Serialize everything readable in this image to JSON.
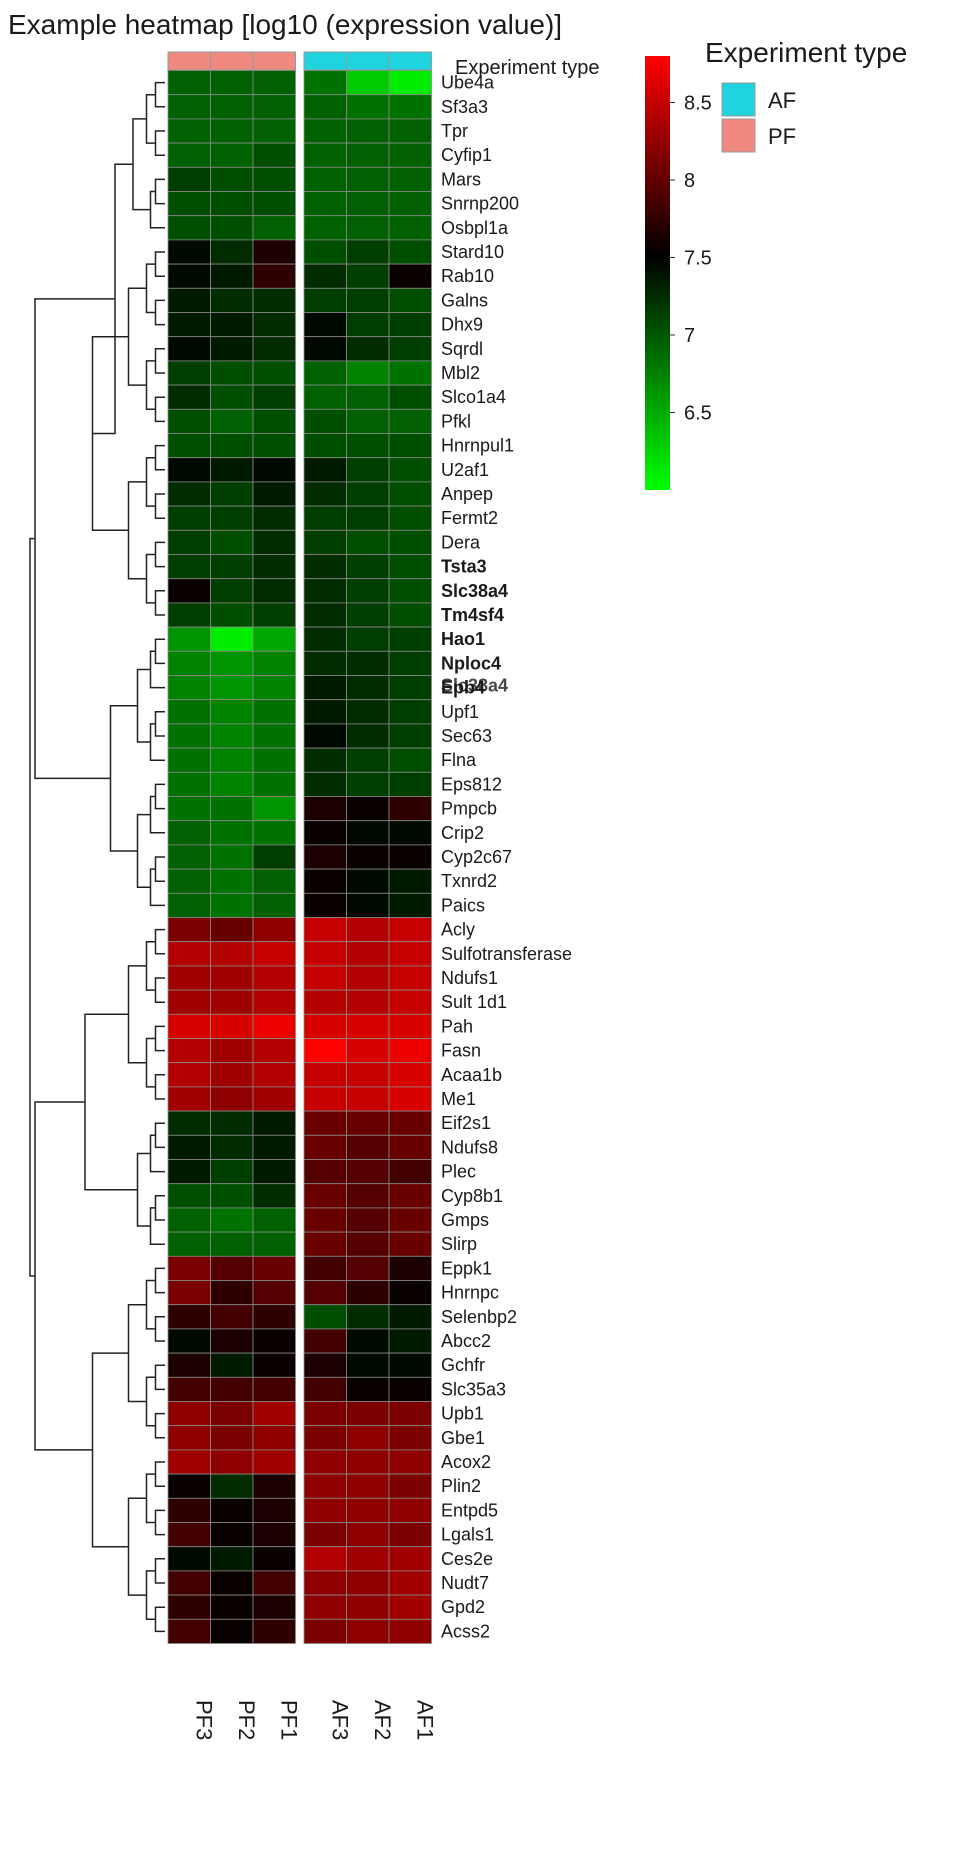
{
  "chart_data": {
    "type": "heatmap",
    "title": "Example heatmap [log10 (expression value)]",
    "annotation_label": "Experiment type",
    "legend_title": "Experiment type",
    "groups": [
      {
        "name": "AF",
        "color": "#1fd4de"
      },
      {
        "name": "PF",
        "color": "#f08a80"
      }
    ],
    "columns": [
      "PF3",
      "PF2",
      "PF1",
      "AF3",
      "AF2",
      "AF1"
    ],
    "column_groups": [
      "PF",
      "PF",
      "PF",
      "AF",
      "AF",
      "AF"
    ],
    "colorbar": {
      "min": 6.0,
      "max": 8.8,
      "ticks": [
        8.5,
        8,
        7.5,
        7,
        6.5
      ],
      "low_color": "#00ff00",
      "mid_color": "#000000",
      "high_color": "#ff0000",
      "mid_value": 7.45
    },
    "rows": [
      "Ube4a",
      "Sf3a3",
      "Tpr",
      "Cyfip1",
      "Mars",
      "Snrnp200",
      "Osbpl1a",
      "Stard10",
      "Rab10",
      "Galns",
      "Dhx9",
      "Sqrdl",
      "Mbl2",
      "Slco1a4",
      "Pfkl",
      "Hnrnpul1",
      "U2af1",
      "Anpep",
      "Fermt2",
      "Dera",
      "Tsta3",
      "Slc38a4",
      "Tm4sf4",
      "Hao1",
      "Nploc4",
      "Epb4",
      "Upf1",
      "Sec63",
      "Flna",
      "Eps812",
      "Pmpcb",
      "Crip2",
      "Cyp2c67",
      "Txnrd2",
      "Paics",
      "Acly",
      "Sulfotransferase",
      "Ndufs1",
      "Sult 1d1",
      "Pah",
      "Fasn",
      "Acaa1b",
      "Me1",
      "Eif2s1",
      "Ndufs8",
      "Plec",
      "Cyp8b1",
      "Gmps",
      "Slirp",
      "Eppk1",
      "Hnrnpc",
      "Selenbp2",
      "Abcc2",
      "Gchfr",
      "Slc35a3",
      "Upb1",
      "Gbe1",
      "Acox2",
      "Plin2",
      "Entpd5",
      "Lgals1",
      "Ces2e",
      "Nudt7",
      "Gpd2",
      "Acss2"
    ],
    "bold_rows": [
      "Tsta3",
      "Slc38a4",
      "Tm4sf4",
      "Hao1",
      "Nploc4",
      "Epb4"
    ],
    "overlap_label": {
      "row": "Epb4",
      "over": "Slc38a4",
      "text": "Slc38a4"
    },
    "values": [
      [
        6.9,
        6.9,
        6.9,
        6.8,
        6.3,
        6.1
      ],
      [
        6.9,
        6.9,
        6.9,
        6.9,
        6.8,
        6.8
      ],
      [
        6.9,
        6.9,
        6.9,
        6.9,
        6.9,
        6.9
      ],
      [
        6.9,
        6.9,
        7.0,
        6.9,
        6.9,
        6.9
      ],
      [
        7.1,
        7.0,
        7.0,
        6.9,
        6.9,
        6.9
      ],
      [
        7.0,
        7.0,
        7.0,
        6.9,
        6.9,
        6.9
      ],
      [
        7.0,
        7.0,
        6.9,
        6.9,
        6.9,
        6.9
      ],
      [
        7.4,
        7.2,
        7.6,
        7.0,
        7.1,
        7.0
      ],
      [
        7.4,
        7.3,
        7.7,
        7.2,
        7.1,
        7.5
      ],
      [
        7.3,
        7.2,
        7.2,
        7.1,
        7.1,
        7.0
      ],
      [
        7.3,
        7.3,
        7.2,
        7.4,
        7.1,
        7.1
      ],
      [
        7.4,
        7.3,
        7.2,
        7.4,
        7.2,
        7.1
      ],
      [
        7.1,
        7.0,
        7.0,
        6.9,
        6.7,
        6.8
      ],
      [
        7.2,
        7.0,
        7.1,
        6.9,
        6.9,
        7.0
      ],
      [
        7.0,
        6.9,
        7.0,
        7.0,
        6.9,
        6.9
      ],
      [
        7.0,
        7.0,
        7.0,
        7.0,
        7.0,
        7.0
      ],
      [
        7.4,
        7.3,
        7.4,
        7.3,
        7.1,
        7.0
      ],
      [
        7.2,
        7.1,
        7.3,
        7.2,
        7.1,
        7.0
      ],
      [
        7.1,
        7.1,
        7.2,
        7.1,
        7.1,
        7.0
      ],
      [
        7.1,
        7.0,
        7.2,
        7.1,
        7.0,
        7.0
      ],
      [
        7.1,
        7.1,
        7.2,
        7.2,
        7.1,
        7.0
      ],
      [
        7.5,
        7.1,
        7.2,
        7.2,
        7.1,
        7.0
      ],
      [
        7.1,
        7.0,
        7.1,
        7.2,
        7.1,
        7.0
      ],
      [
        6.6,
        6.1,
        6.5,
        7.2,
        7.1,
        7.1
      ],
      [
        6.7,
        6.6,
        6.7,
        7.2,
        7.2,
        7.1
      ],
      [
        6.7,
        6.6,
        6.7,
        7.3,
        7.2,
        7.1
      ],
      [
        6.8,
        6.7,
        6.8,
        7.3,
        7.2,
        7.1
      ],
      [
        6.8,
        6.7,
        6.8,
        7.4,
        7.2,
        7.1
      ],
      [
        6.8,
        6.7,
        6.8,
        7.2,
        7.1,
        7.0
      ],
      [
        6.8,
        6.7,
        6.8,
        7.2,
        7.1,
        7.1
      ],
      [
        6.8,
        6.8,
        6.6,
        7.6,
        7.5,
        7.7
      ],
      [
        6.9,
        6.8,
        6.8,
        7.5,
        7.4,
        7.4
      ],
      [
        6.9,
        6.8,
        7.1,
        7.6,
        7.5,
        7.5
      ],
      [
        6.9,
        6.8,
        6.9,
        7.5,
        7.4,
        7.3
      ],
      [
        6.9,
        6.8,
        6.9,
        7.5,
        7.4,
        7.3
      ],
      [
        8.1,
        8.0,
        8.2,
        8.5,
        8.4,
        8.5
      ],
      [
        8.4,
        8.4,
        8.5,
        8.5,
        8.4,
        8.5
      ],
      [
        8.3,
        8.3,
        8.4,
        8.5,
        8.4,
        8.5
      ],
      [
        8.3,
        8.3,
        8.4,
        8.4,
        8.4,
        8.5
      ],
      [
        8.6,
        8.6,
        8.7,
        8.6,
        8.6,
        8.6
      ],
      [
        8.4,
        8.3,
        8.4,
        8.8,
        8.6,
        8.7
      ],
      [
        8.4,
        8.3,
        8.4,
        8.5,
        8.5,
        8.6
      ],
      [
        8.3,
        8.2,
        8.3,
        8.5,
        8.5,
        8.6
      ],
      [
        7.2,
        7.2,
        7.3,
        8.0,
        8.0,
        8.0
      ],
      [
        7.3,
        7.2,
        7.3,
        8.0,
        7.9,
        8.0
      ],
      [
        7.3,
        7.1,
        7.3,
        7.9,
        7.9,
        7.8
      ],
      [
        7.0,
        7.0,
        7.2,
        8.0,
        7.9,
        8.0
      ],
      [
        6.9,
        6.8,
        6.9,
        8.0,
        7.9,
        8.0
      ],
      [
        6.9,
        6.9,
        6.9,
        8.0,
        7.9,
        8.0
      ],
      [
        8.1,
        7.9,
        8.0,
        7.8,
        7.9,
        7.6
      ],
      [
        8.1,
        7.7,
        7.9,
        7.9,
        7.7,
        7.5
      ],
      [
        7.7,
        7.8,
        7.7,
        7.0,
        7.2,
        7.3
      ],
      [
        7.4,
        7.6,
        7.5,
        7.8,
        7.4,
        7.3
      ],
      [
        7.6,
        7.3,
        7.5,
        7.6,
        7.4,
        7.4
      ],
      [
        7.8,
        7.8,
        7.8,
        7.8,
        7.5,
        7.5
      ],
      [
        8.2,
        8.1,
        8.3,
        8.1,
        8.1,
        8.1
      ],
      [
        8.2,
        8.1,
        8.2,
        8.1,
        8.2,
        8.1
      ],
      [
        8.3,
        8.2,
        8.3,
        8.2,
        8.2,
        8.2
      ],
      [
        7.5,
        7.2,
        7.6,
        8.2,
        8.2,
        8.1
      ],
      [
        7.7,
        7.5,
        7.6,
        8.2,
        8.2,
        8.2
      ],
      [
        7.8,
        7.5,
        7.6,
        8.1,
        8.2,
        8.1
      ],
      [
        7.4,
        7.3,
        7.5,
        8.4,
        8.3,
        8.3
      ],
      [
        7.8,
        7.5,
        7.8,
        8.2,
        8.2,
        8.3
      ],
      [
        7.7,
        7.5,
        7.6,
        8.2,
        8.2,
        8.3
      ],
      [
        7.8,
        7.5,
        7.7,
        8.1,
        8.2,
        8.2
      ]
    ]
  }
}
